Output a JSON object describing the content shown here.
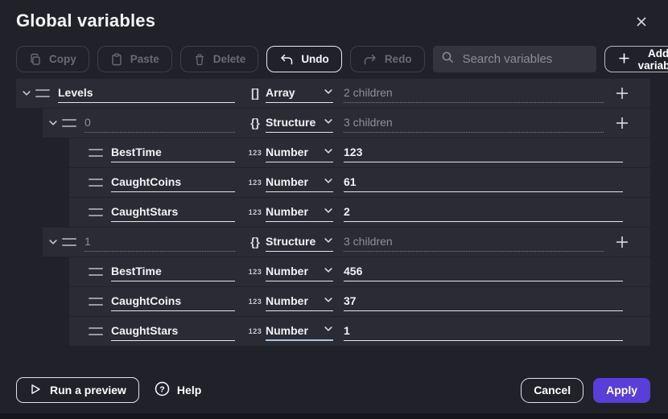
{
  "title": "Global variables",
  "toolbar": {
    "copy": "Copy",
    "paste": "Paste",
    "delete": "Delete",
    "undo": "Undo",
    "redo": "Redo",
    "search_placeholder": "Search variables",
    "add_variable": "Add variable"
  },
  "type_icons": {
    "array": "[]",
    "structure": "{}",
    "number": "123"
  },
  "rows": [
    {
      "level": 0,
      "expanded": true,
      "name": "Levels",
      "name_muted": false,
      "type": "Array",
      "type_icon": "array",
      "value": "2 children",
      "value_is_count": true,
      "has_add_button": true,
      "select_focused": false
    },
    {
      "level": 1,
      "expanded": true,
      "name": "0",
      "name_muted": true,
      "type": "Structure",
      "type_icon": "structure",
      "value": "3 children",
      "value_is_count": true,
      "has_add_button": true,
      "select_focused": false
    },
    {
      "level": 2,
      "expanded": false,
      "name": "BestTime",
      "name_muted": false,
      "type": "Number",
      "type_icon": "number",
      "value": "123",
      "value_is_count": false,
      "has_add_button": false,
      "select_focused": false
    },
    {
      "level": 2,
      "expanded": false,
      "name": "CaughtCoins",
      "name_muted": false,
      "type": "Number",
      "type_icon": "number",
      "value": "61",
      "value_is_count": false,
      "has_add_button": false,
      "select_focused": false
    },
    {
      "level": 2,
      "expanded": false,
      "name": "CaughtStars",
      "name_muted": false,
      "type": "Number",
      "type_icon": "number",
      "value": "2",
      "value_is_count": false,
      "has_add_button": false,
      "select_focused": false
    },
    {
      "level": 1,
      "expanded": true,
      "name": "1",
      "name_muted": true,
      "type": "Structure",
      "type_icon": "structure",
      "value": "3 children",
      "value_is_count": true,
      "has_add_button": true,
      "select_focused": false
    },
    {
      "level": 2,
      "expanded": false,
      "name": "BestTime",
      "name_muted": false,
      "type": "Number",
      "type_icon": "number",
      "value": "456",
      "value_is_count": false,
      "has_add_button": false,
      "select_focused": false
    },
    {
      "level": 2,
      "expanded": false,
      "name": "CaughtCoins",
      "name_muted": false,
      "type": "Number",
      "type_icon": "number",
      "value": "37",
      "value_is_count": false,
      "has_add_button": false,
      "select_focused": false
    },
    {
      "level": 2,
      "expanded": false,
      "name": "CaughtStars",
      "name_muted": false,
      "type": "Number",
      "type_icon": "number",
      "value": "1",
      "value_is_count": false,
      "has_add_button": false,
      "select_focused": true
    }
  ],
  "footer": {
    "run_preview": "Run a preview",
    "help": "Help",
    "cancel": "Cancel",
    "apply": "Apply"
  },
  "colors": {
    "background": "#21212a",
    "row_background": "#2b2b35",
    "accent_purple": "#5a3ed8",
    "focus_underline_blue": "#a9c2de",
    "search_background": "#34343d",
    "disabled_text": "#6a6a74",
    "muted_text": "#8f8f9a"
  }
}
